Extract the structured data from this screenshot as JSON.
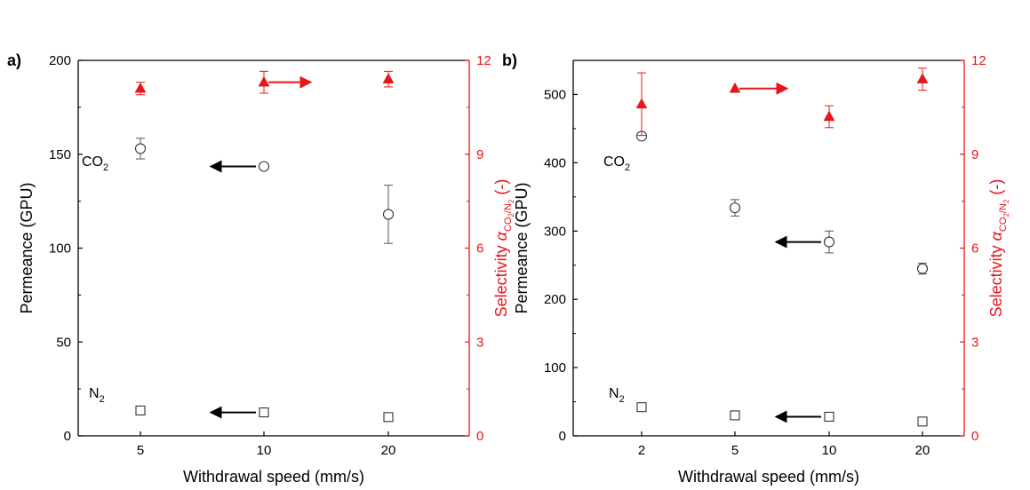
{
  "colors": {
    "left_axis": "#000000",
    "right_axis": "#e8161b",
    "frame": "#000000",
    "background": "#ffffff"
  },
  "chart_data": [
    {
      "type": "scatter",
      "panel_label": "a)",
      "xlabel": "Withdrawal speed (mm/s)",
      "ylabel_left": "Permeance (GPU)",
      "ylabel_right": {
        "prefix": "Selectivity ",
        "symbol": "α",
        "sub_co2": "CO",
        "sub_two_a": "2",
        "slash": "/N",
        "sub_two_b": "2",
        "suffix": " (-)"
      },
      "categories": [
        "5",
        "10",
        "20"
      ],
      "ylim_left": [
        0,
        200
      ],
      "yticks_left": [
        "0",
        "50",
        "100",
        "150",
        "200"
      ],
      "ylim_right": [
        0,
        12
      ],
      "yticks_right": [
        "0",
        "3",
        "6",
        "9",
        "12"
      ],
      "grid": false,
      "series": [
        {
          "name": "CO2",
          "axis": "left",
          "marker": "open-circle",
          "values": [
            153,
            143.5,
            118
          ],
          "errors": [
            5.5,
            0,
            15.5
          ]
        },
        {
          "name": "N2",
          "axis": "left",
          "marker": "open-square",
          "values": [
            13.5,
            12.5,
            10
          ],
          "errors": [
            0,
            0,
            0
          ]
        },
        {
          "name": "Selectivity",
          "axis": "right",
          "marker": "filled-triangle",
          "values": [
            11.1,
            11.3,
            11.4
          ],
          "errors": [
            0.2,
            0.35,
            0.25
          ]
        }
      ],
      "annotations": {
        "co2_label": {
          "main": "CO",
          "sub": "2"
        },
        "n2_label": {
          "main": "N",
          "sub": "2"
        }
      }
    },
    {
      "type": "scatter",
      "panel_label": "b)",
      "xlabel": "Withdrawal speed (mm/s)",
      "ylabel_left": "Permeance (GPU)",
      "ylabel_right": {
        "prefix": "Selectivity ",
        "symbol": "α",
        "sub_co2": "CO",
        "sub_two_a": "2",
        "slash": "/N",
        "sub_two_b": "2",
        "suffix": " (-)"
      },
      "categories": [
        "2",
        "5",
        "10",
        "20"
      ],
      "ylim_left": [
        0,
        550
      ],
      "yticks_left": [
        "0",
        "100",
        "200",
        "300",
        "400",
        "500"
      ],
      "ylim_right": [
        0,
        12
      ],
      "yticks_right": [
        "0",
        "3",
        "6",
        "9",
        "12"
      ],
      "grid": false,
      "series": [
        {
          "name": "CO2",
          "axis": "left",
          "marker": "open-circle",
          "values": [
            439,
            334,
            284,
            245
          ],
          "errors": [
            0,
            12,
            16,
            8
          ]
        },
        {
          "name": "N2",
          "axis": "left",
          "marker": "open-square",
          "values": [
            42,
            30,
            28,
            21
          ],
          "errors": [
            0,
            0,
            0,
            0
          ]
        },
        {
          "name": "Selectivity",
          "axis": "right",
          "marker": "filled-triangle",
          "values": [
            10.6,
            11.1,
            10.2,
            11.4
          ],
          "errors": [
            1.0,
            0,
            0.35,
            0.35
          ]
        }
      ],
      "annotations": {
        "co2_label": {
          "main": "CO",
          "sub": "2"
        },
        "n2_label": {
          "main": "N",
          "sub": "2"
        }
      }
    }
  ]
}
